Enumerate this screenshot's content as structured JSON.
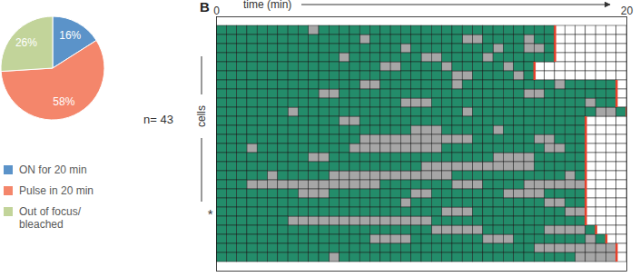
{
  "chart_data": [
    {
      "type": "pie",
      "categories": [
        "ON for 20 min",
        "Pulse in 20 min",
        "Out of focus/bleached"
      ],
      "values": [
        16,
        58,
        26
      ],
      "value_labels": [
        "16%",
        "58%",
        "26%"
      ],
      "data_labels": true,
      "colors": [
        "#5b93c9",
        "#f4866b",
        "#c2d49a"
      ],
      "legend": "bottom",
      "annotations": [
        {
          "text": "n= 43"
        }
      ]
    },
    {
      "type": "heatmap",
      "title": "B",
      "x_label": "time (min)",
      "y_label": "cells",
      "xlim": [
        0,
        20
      ],
      "xticks": [
        0,
        20
      ],
      "cell_minutes": 0.5,
      "colors": [
        "#a6a6a6",
        "#238c6a",
        "#e8412c"
      ],
      "annotations": [
        {
          "text": "*",
          "row": 20
        }
      ],
      "rows": [
        [
          [
            1,
            4.5
          ],
          [
            0,
            0.5
          ],
          [
            1,
            11.5
          ]
        ],
        [
          [
            1,
            7
          ],
          [
            0,
            0.5
          ],
          [
            1,
            4.5
          ],
          [
            0,
            1
          ],
          [
            1,
            2
          ],
          [
            0,
            0.5
          ],
          [
            1,
            1
          ]
        ],
        [
          [
            1,
            9
          ],
          [
            0,
            0.5
          ],
          [
            1,
            4
          ],
          [
            0,
            0.5
          ],
          [
            1,
            1
          ],
          [
            0,
            1
          ],
          [
            1,
            0.5
          ]
        ],
        [
          [
            1,
            6
          ],
          [
            0,
            0.5
          ],
          [
            1,
            3.5
          ],
          [
            0,
            1
          ],
          [
            1,
            2
          ],
          [
            0,
            0.5
          ],
          [
            1,
            3
          ]
        ],
        [
          [
            1,
            8
          ],
          [
            0,
            1
          ],
          [
            1,
            2
          ],
          [
            0,
            0.5
          ],
          [
            1,
            2.5
          ],
          [
            0,
            0.5
          ],
          [
            1,
            1
          ]
        ],
        [
          [
            1,
            11.5
          ],
          [
            0,
            1
          ],
          [
            1,
            2
          ],
          [
            0,
            0.5
          ],
          [
            1,
            0.5
          ]
        ],
        [
          [
            1,
            7
          ],
          [
            0,
            1
          ],
          [
            1,
            3.5
          ],
          [
            0,
            0.5
          ],
          [
            1,
            4.5
          ],
          [
            0,
            0.5
          ],
          [
            1,
            2.5
          ]
        ],
        [
          [
            1,
            5
          ],
          [
            0,
            1
          ],
          [
            1,
            9
          ],
          [
            0,
            1
          ],
          [
            1,
            3.5
          ]
        ],
        [
          [
            1,
            9
          ],
          [
            0,
            1.5
          ],
          [
            1,
            7.5
          ],
          [
            0,
            0.5
          ],
          [
            1,
            1
          ]
        ],
        [
          [
            1,
            3.5
          ],
          [
            0,
            0.5
          ],
          [
            1,
            8
          ],
          [
            0,
            0.5
          ],
          [
            1,
            6
          ],
          [
            0,
            1
          ],
          [
            1,
            0.5
          ]
        ],
        [
          [
            1,
            6
          ],
          [
            0,
            1
          ],
          [
            1,
            11
          ]
        ],
        [
          [
            1,
            9.5
          ],
          [
            0,
            1.5
          ],
          [
            1,
            2.5
          ],
          [
            0,
            0.5
          ],
          [
            1,
            4
          ]
        ],
        [
          [
            1,
            7
          ],
          [
            0,
            5.5
          ],
          [
            1,
            3
          ],
          [
            0,
            1
          ],
          [
            1,
            1.5
          ]
        ],
        [
          [
            1,
            1.5
          ],
          [
            0,
            0.5
          ],
          [
            1,
            4.5
          ],
          [
            0,
            4.5
          ],
          [
            1,
            5
          ],
          [
            0,
            1
          ],
          [
            1,
            1
          ]
        ],
        [
          [
            1,
            4.5
          ],
          [
            0,
            1
          ],
          [
            1,
            8
          ],
          [
            0,
            2
          ],
          [
            1,
            2.5
          ]
        ],
        [
          [
            1,
            10
          ],
          [
            0,
            5.5
          ],
          [
            1,
            2.5
          ]
        ],
        [
          [
            1,
            2.5
          ],
          [
            0,
            0.5
          ],
          [
            1,
            2.5
          ],
          [
            0,
            6
          ],
          [
            1,
            5.5
          ],
          [
            0,
            0.5
          ],
          [
            1,
            0.5
          ]
        ],
        [
          [
            1,
            1.5
          ],
          [
            0,
            6.5
          ],
          [
            1,
            3.5
          ],
          [
            0,
            1.5
          ],
          [
            1,
            2
          ],
          [
            0,
            3
          ]
        ],
        [
          [
            1,
            4
          ],
          [
            0,
            1.5
          ],
          [
            1,
            4
          ],
          [
            0,
            1
          ],
          [
            1,
            3.5
          ],
          [
            0,
            2
          ],
          [
            1,
            2
          ]
        ],
        [
          [
            1,
            9
          ],
          [
            0,
            0.5
          ],
          [
            1,
            6.5
          ],
          [
            0,
            1
          ],
          [
            1,
            1
          ]
        ],
        [
          [
            1,
            11
          ],
          [
            0,
            1.5
          ],
          [
            1,
            4.5
          ],
          [
            0,
            1
          ]
        ],
        [
          [
            1,
            3.5
          ],
          [
            0,
            7
          ],
          [
            1,
            7.5
          ]
        ],
        [
          [
            1,
            10.5
          ],
          [
            0,
            2.5
          ],
          [
            1,
            3
          ],
          [
            0,
            2
          ],
          [
            1,
            0.5
          ]
        ],
        [
          [
            1,
            7.5
          ],
          [
            0,
            2
          ],
          [
            1,
            3.5
          ],
          [
            0,
            1.5
          ],
          [
            1,
            3.5
          ],
          [
            0,
            0.5
          ],
          [
            1,
            0.5
          ]
        ],
        [
          [
            1,
            15.5
          ],
          [
            0,
            4
          ]
        ],
        [
          [
            1,
            5.5
          ],
          [
            0,
            0.5
          ],
          [
            1,
            11.5
          ],
          [
            0,
            2
          ]
        ]
      ]
    }
  ]
}
